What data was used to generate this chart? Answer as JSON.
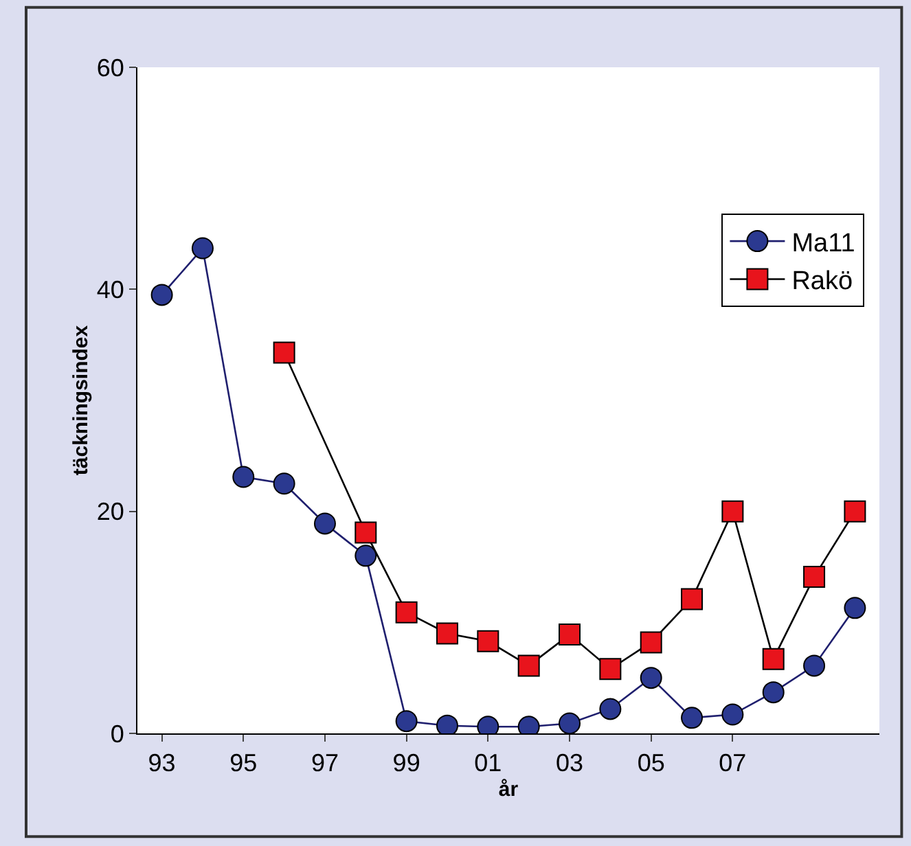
{
  "chart_data": {
    "type": "line",
    "xlabel": "år",
    "ylabel": "täckningsindex",
    "categories": [
      "93",
      null,
      "95",
      null,
      "97",
      null,
      "99",
      null,
      "01",
      null,
      "03",
      null,
      "05",
      null,
      "07",
      null,
      null,
      null
    ],
    "series": [
      {
        "name": "Ma11",
        "color": "#2b3990",
        "marker": "circle",
        "values": [
          39.5,
          43.7,
          23.1,
          22.5,
          18.9,
          16.0,
          1.1,
          0.7,
          0.6,
          0.6,
          0.9,
          2.2,
          5.0,
          1.4,
          1.7,
          3.7,
          6.1,
          11.3
        ]
      },
      {
        "name": "Rakö",
        "color": "#e8141c",
        "marker": "square",
        "values": [
          null,
          null,
          null,
          34.3,
          null,
          18.1,
          10.9,
          9.0,
          8.3,
          6.1,
          8.9,
          5.8,
          8.2,
          12.1,
          20.0,
          6.7,
          14.1,
          20.0
        ]
      }
    ],
    "ylim": [
      0,
      60
    ],
    "yticks": [
      0,
      20,
      40,
      60
    ],
    "legend": "top right"
  }
}
